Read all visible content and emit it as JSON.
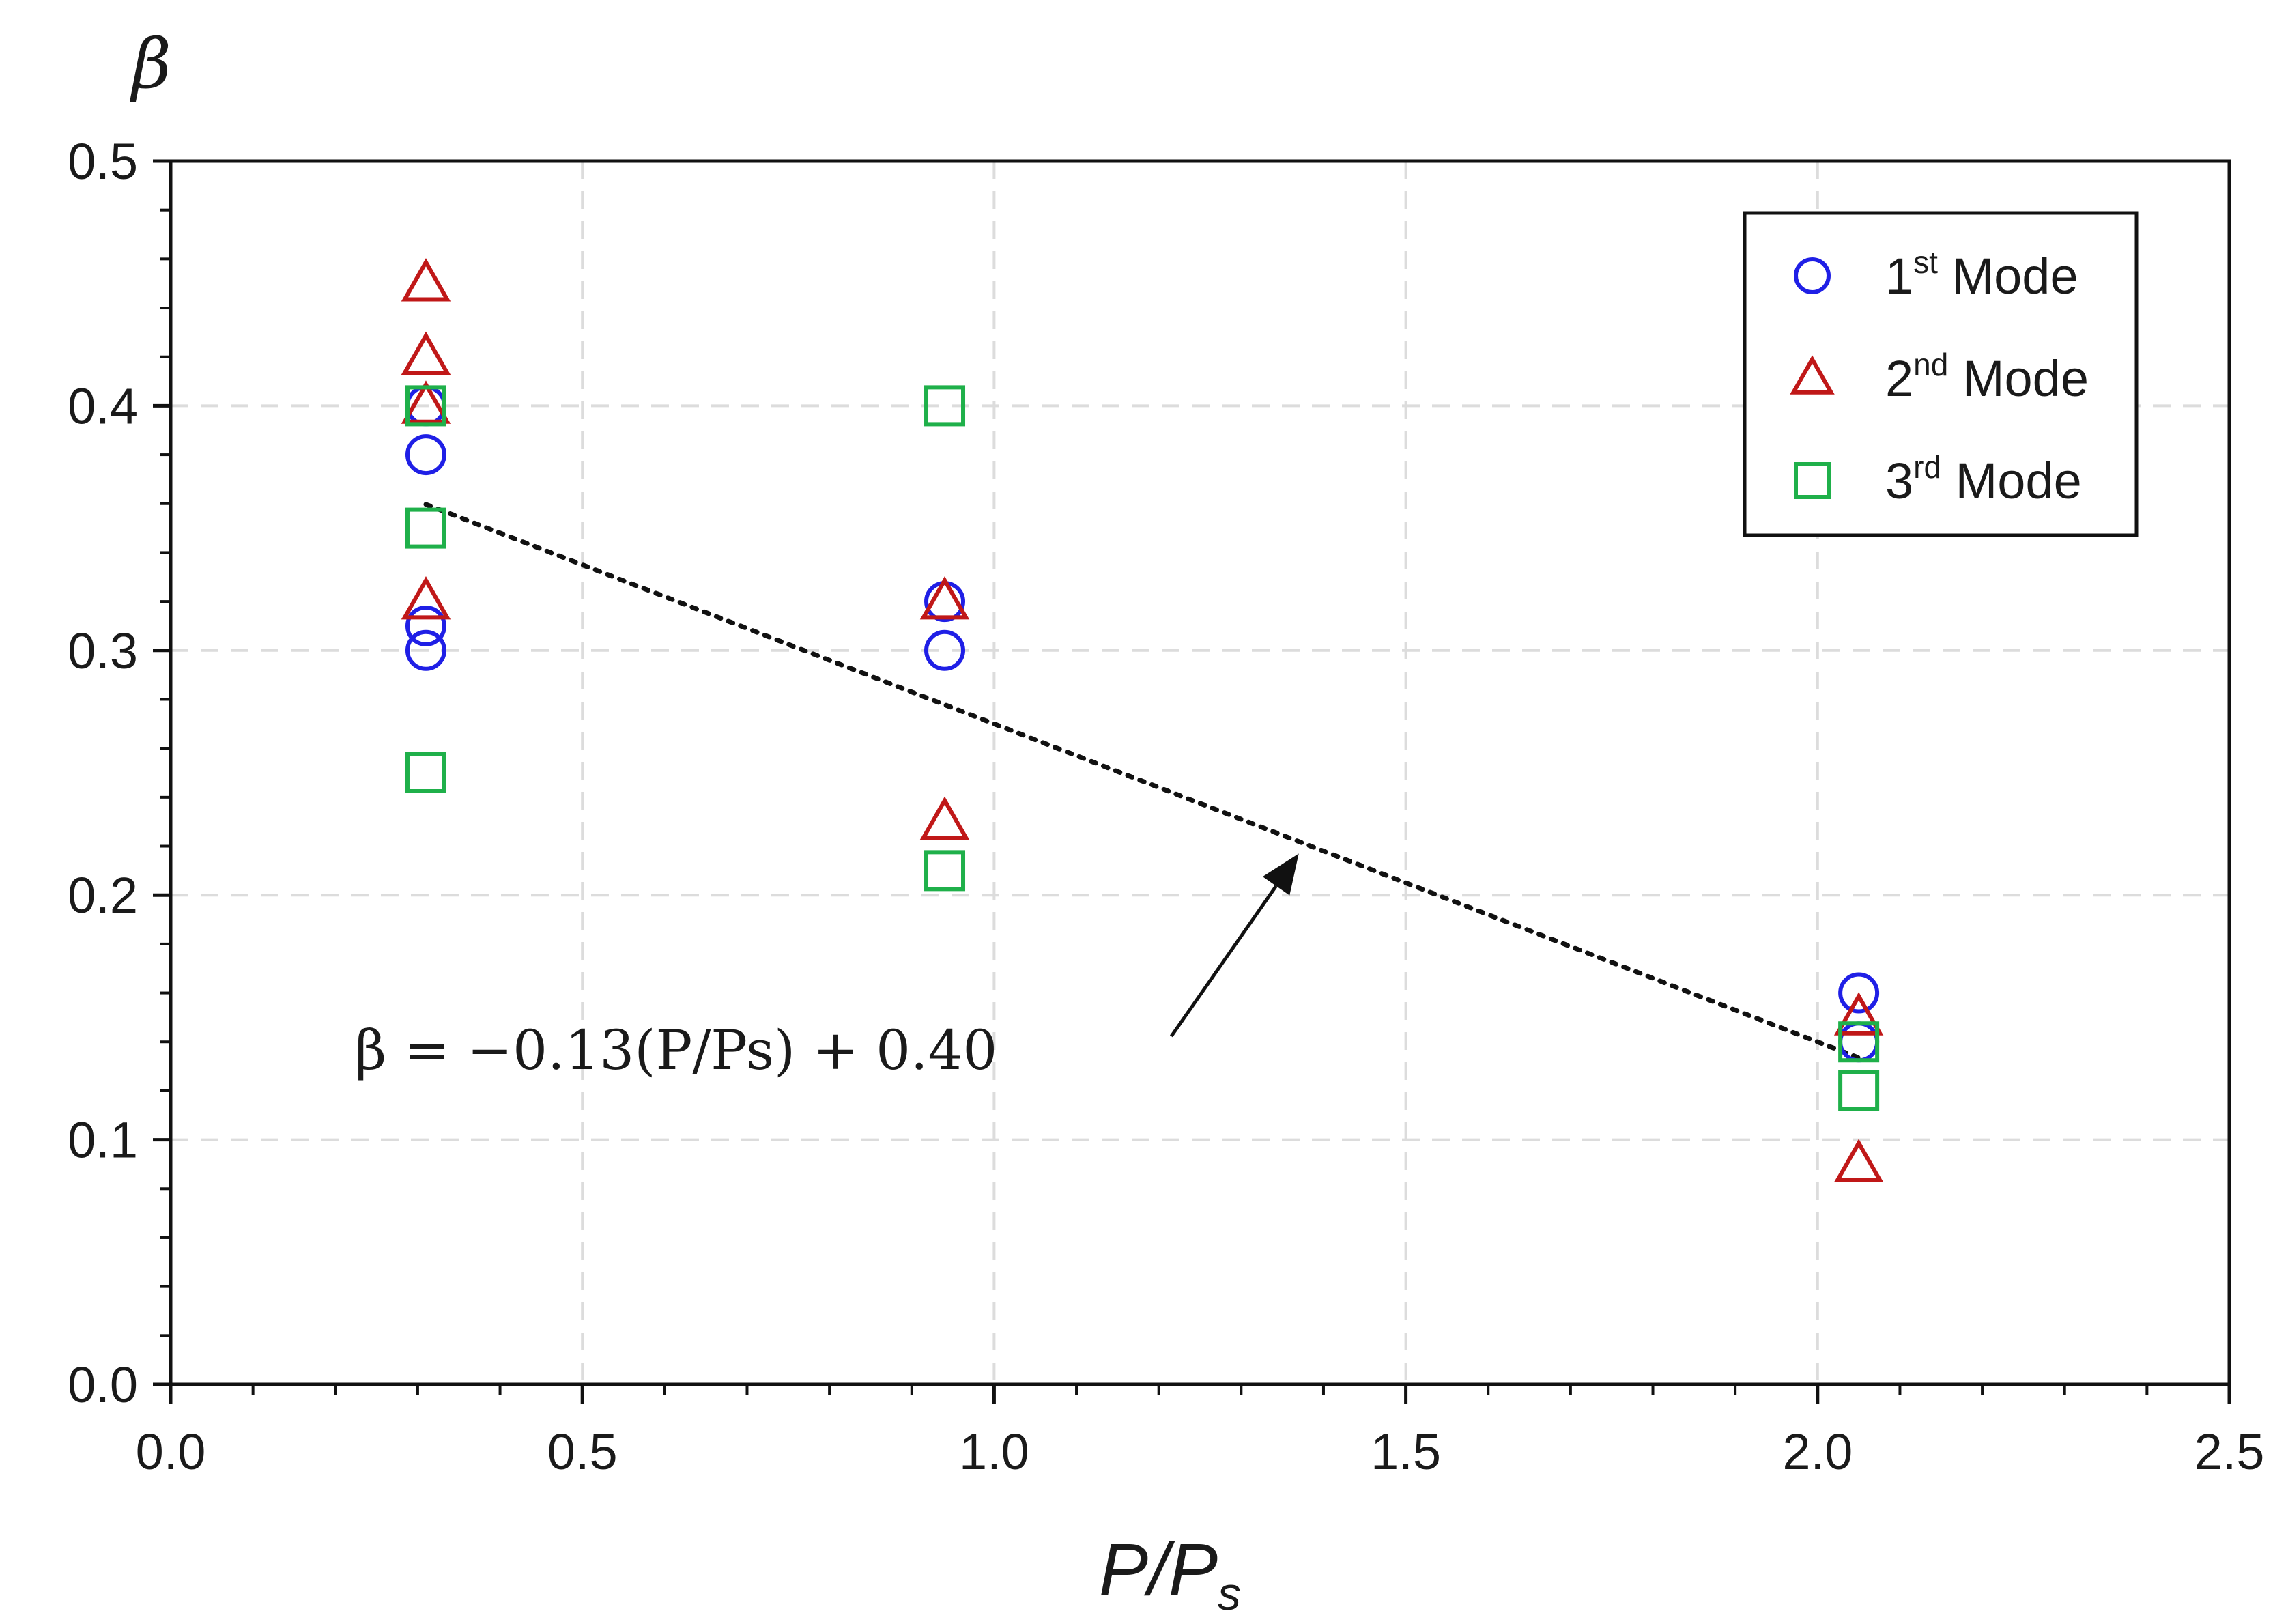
{
  "chart_data": {
    "type": "scatter",
    "title": "",
    "xlabel": {
      "main": "P/P",
      "sub": "s"
    },
    "ylabel": "β",
    "xlim": [
      0,
      2.5
    ],
    "ylim": [
      0,
      0.5
    ],
    "xticks": [
      "0.0",
      "0.5",
      "1.0",
      "1.5",
      "2.0",
      "2.5"
    ],
    "yticks": [
      "0.0",
      "0.1",
      "0.2",
      "0.3",
      "0.4",
      "0.5"
    ],
    "grid": true,
    "legend_position": "top-right",
    "series": [
      {
        "name": "Mode",
        "legend": {
          "num": "1",
          "sup": "st",
          "word": "Mode"
        },
        "marker": "circle",
        "color": "#1f1fe6",
        "points": [
          [
            0.31,
            0.4
          ],
          [
            0.31,
            0.38
          ],
          [
            0.31,
            0.31
          ],
          [
            0.31,
            0.3
          ],
          [
            0.94,
            0.32
          ],
          [
            0.94,
            0.3
          ],
          [
            2.05,
            0.16
          ],
          [
            2.05,
            0.14
          ]
        ]
      },
      {
        "name": "Mode",
        "legend": {
          "num": "2",
          "sup": "nd",
          "word": "Mode"
        },
        "marker": "triangle",
        "color": "#c01818",
        "points": [
          [
            0.31,
            0.45
          ],
          [
            0.31,
            0.42
          ],
          [
            0.31,
            0.4
          ],
          [
            0.31,
            0.32
          ],
          [
            0.94,
            0.32
          ],
          [
            0.94,
            0.23
          ],
          [
            2.05,
            0.15
          ],
          [
            2.05,
            0.09
          ]
        ]
      },
      {
        "name": "Mode",
        "legend": {
          "num": "3",
          "sup": "rd",
          "word": "Mode"
        },
        "marker": "square",
        "color": "#1fb04a",
        "points": [
          [
            0.31,
            0.4
          ],
          [
            0.31,
            0.35
          ],
          [
            0.31,
            0.25
          ],
          [
            0.94,
            0.4
          ],
          [
            0.94,
            0.21
          ],
          [
            2.05,
            0.14
          ],
          [
            2.05,
            0.12
          ]
        ]
      }
    ],
    "trendline": {
      "style": "dotted",
      "color": "#111111",
      "slope": -0.13,
      "intercept": 0.4,
      "x_range": [
        0.31,
        2.05
      ]
    },
    "annotation": {
      "text": "β = −0.13(P/Ps) + 0.40",
      "arrow_to": [
        1.37,
        0.222
      ]
    }
  }
}
